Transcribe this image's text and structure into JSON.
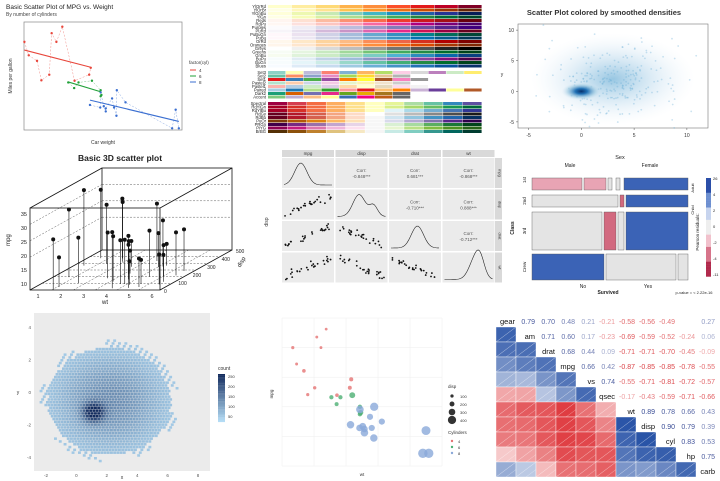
{
  "chart_data": [
    {
      "type": "scatter",
      "title": "Basic Scatter Plot of MPG vs. Weight",
      "subtitle": "By number of cylinders",
      "xlabel": "Car weight",
      "ylabel": "Miles per gallon",
      "legend_title": "factor(cyl)",
      "legend_placement": "right",
      "series": [
        {
          "name": "4",
          "color": "#e8463b",
          "x": [
            2.2,
            2.32,
            2.47,
            1.51,
            1.62,
            1.83,
            1.94,
            2.14,
            3.19,
            3.15,
            2.78
          ],
          "y": [
            32.4,
            30.4,
            33.9,
            30.4,
            27.3,
            26.0,
            21.5,
            22.8,
            24.4,
            22.8,
            21.4
          ]
        },
        {
          "name": "6",
          "color": "#22a13a",
          "x": [
            2.62,
            2.88,
            3.22,
            3.46,
            3.44,
            3.44,
            2.77
          ],
          "y": [
            21.0,
            21.0,
            21.4,
            18.1,
            19.2,
            17.8,
            19.7
          ]
        },
        {
          "name": "8",
          "color": "#3b6fd1",
          "x": [
            3.44,
            3.57,
            4.07,
            3.73,
            3.78,
            5.25,
            5.42,
            5.34,
            3.52,
            3.43,
            3.84,
            3.85,
            3.17,
            3.57
          ],
          "y": [
            18.7,
            14.3,
            16.4,
            17.3,
            15.2,
            10.4,
            10.4,
            14.7,
            15.5,
            15.2,
            13.3,
            19.2,
            15.8,
            15.0
          ]
        }
      ],
      "xlim": [
        1.5,
        5.5
      ],
      "ylim": [
        10,
        35
      ]
    },
    {
      "type": "table",
      "title": "",
      "palettes_group1": [
        "YlOrRd",
        "YlOrBr",
        "YlGnBu",
        "YlGn",
        "Reds",
        "RdPu",
        "Purples",
        "PuRd",
        "PuBuGn",
        "PuBu",
        "OrRd",
        "Oranges",
        "Greys",
        "Greens",
        "GnBu",
        "BuPu",
        "BuGn",
        "Blues"
      ],
      "palettes_group2": [
        "Set3",
        "Set2",
        "Set1",
        "Pastel2",
        "Pastel1",
        "Paired",
        "Dark2",
        "Accent"
      ],
      "palettes_group3": [
        "Spectral",
        "RdYlGn",
        "RdYlBu",
        "RdGy",
        "RdBu",
        "PuOr",
        "PRGn",
        "PiYG",
        "BrBG"
      ]
    },
    {
      "type": "heatmap",
      "title": "Scatter Plot colored by smoothed densities",
      "xlabel": "",
      "ylabel": "y",
      "x_ticks": [
        "-5",
        "0",
        "5",
        "10"
      ],
      "y_ticks": [
        "10",
        "5",
        "0",
        "-5"
      ],
      "xlim": [
        -6,
        12
      ],
      "ylim": [
        -6,
        11
      ]
    },
    {
      "type": "scatter",
      "title": "Basic 3D scatter plot",
      "xlabel": "wt",
      "ylabel": "mpg",
      "zlabel": "disp",
      "x_ticks": [
        "1",
        "2",
        "3",
        "4",
        "5",
        "6"
      ],
      "y_ticks": [
        "10",
        "15",
        "20",
        "25",
        "30",
        "35"
      ],
      "z_ticks": [
        "0",
        "100",
        "200",
        "300",
        "400",
        "500"
      ]
    },
    {
      "type": "scatter",
      "title": "",
      "variables": [
        "mpg",
        "disp",
        "drat",
        "wt"
      ],
      "correlations": [
        {
          "row": "mpg",
          "col": "disp",
          "label": "Corr:",
          "value": "-0.848***"
        },
        {
          "row": "mpg",
          "col": "drat",
          "label": "Corr:",
          "value": "0.681***"
        },
        {
          "row": "mpg",
          "col": "wt",
          "label": "Corr:",
          "value": "-0.868***"
        },
        {
          "row": "disp",
          "col": "drat",
          "label": "Corr:",
          "value": "-0.710***"
        },
        {
          "row": "disp",
          "col": "wt",
          "label": "Corr:",
          "value": "0.888***"
        },
        {
          "row": "drat",
          "col": "wt",
          "label": "Corr:",
          "value": "-0.712***"
        }
      ],
      "ylabel": "disp"
    },
    {
      "type": "table",
      "title": "Sex",
      "col_labels": [
        "Male",
        "Female"
      ],
      "row_labels": [
        "1st",
        "2nd",
        "3rd",
        "Crew"
      ],
      "sub_labels": [
        "Child",
        "Adult"
      ],
      "x_label": "Survived",
      "x_values": [
        "No",
        "Yes"
      ],
      "class_label": "Class",
      "age_label": "Age",
      "legend_title": "Pearson residuals:",
      "legend_ticks": [
        "26",
        "4",
        "2",
        "0",
        "-2",
        "-4",
        "-11"
      ],
      "p_value": "p-value = < 2.22e-16"
    },
    {
      "type": "heatmap",
      "title": "",
      "xlabel": "x",
      "ylabel": "y",
      "legend_title": "count",
      "legend_ticks": [
        "50",
        "100",
        "150",
        "200",
        "250"
      ],
      "x_ticks": [
        "-2",
        "0",
        "2",
        "4",
        "6",
        "8"
      ],
      "y_ticks": [
        "4",
        "2",
        "0",
        "-2",
        "-4"
      ]
    },
    {
      "type": "scatter",
      "title": "",
      "xlabel": "wt",
      "ylabel": "mpg",
      "size_legend_title": "disp",
      "size_legend": [
        "100",
        "200",
        "300",
        "400"
      ],
      "color_legend_title": "Cylinders",
      "color_legend": [
        "4",
        "6",
        "8"
      ],
      "series": [
        {
          "name": "4",
          "color": "#e57373",
          "x": [
            2.2,
            2.32,
            2.47,
            1.51,
            1.62,
            1.83,
            1.94,
            2.14,
            3.19,
            3.15,
            2.78
          ],
          "y": [
            32.4,
            30.4,
            33.9,
            30.4,
            27.3,
            26.0,
            21.5,
            22.8,
            24.4,
            22.8,
            21.4
          ],
          "disp": [
            79,
            75,
            71,
            95,
            79,
            120,
            97,
            108,
            147,
            141,
            121
          ]
        },
        {
          "name": "6",
          "color": "#4caf73",
          "x": [
            2.62,
            2.88,
            3.22,
            3.46,
            3.44,
            3.44,
            2.77
          ],
          "y": [
            21.0,
            21.0,
            21.4,
            18.1,
            19.2,
            17.8,
            19.7
          ],
          "disp": [
            160,
            160,
            258,
            225,
            168,
            168,
            145
          ]
        },
        {
          "name": "8",
          "color": "#8aa9d9",
          "x": [
            3.44,
            3.57,
            4.07,
            3.73,
            3.78,
            5.25,
            5.42,
            5.34,
            3.52,
            3.43,
            3.84,
            3.85,
            3.17,
            3.57
          ],
          "y": [
            18.7,
            14.3,
            16.4,
            17.3,
            15.2,
            10.4,
            10.4,
            14.7,
            15.5,
            15.2,
            13.3,
            19.2,
            15.8,
            15.0
          ],
          "disp": [
            360,
            360,
            276,
            276,
            276,
            472,
            460,
            440,
            318,
            304,
            350,
            400,
            351,
            301
          ]
        }
      ],
      "xlim": [
        1.2,
        5.8
      ],
      "ylim": [
        8,
        36
      ]
    },
    {
      "type": "heatmap",
      "title": "",
      "variables": [
        "gear",
        "am",
        "drat",
        "mpg",
        "vs",
        "qsec",
        "wt",
        "disp",
        "cyl",
        "hp",
        "carb"
      ],
      "upper_values": [
        [
          "0.79",
          "0.70",
          "0.48",
          "0.21",
          "-0.21",
          "-0.58",
          "-0.56",
          "-0.49",
          "",
          "0.27"
        ],
        [
          "0.71",
          "0.60",
          "0.17",
          "-0.23",
          "-0.69",
          "-0.59",
          "-0.52",
          "-0.24",
          "0.06"
        ],
        [
          "0.68",
          "0.44",
          "0.09",
          "-0.71",
          "-0.71",
          "-0.70",
          "-0.45",
          "-0.09"
        ],
        [
          "0.66",
          "0.42",
          "-0.87",
          "-0.85",
          "-0.85",
          "-0.78",
          "-0.55"
        ],
        [
          "0.74",
          "-0.55",
          "-0.71",
          "-0.81",
          "-0.72",
          "-0.57"
        ],
        [
          "-0.17",
          "-0.43",
          "-0.59",
          "-0.71",
          "-0.66"
        ],
        [
          "0.89",
          "0.78",
          "0.66",
          "0.43"
        ],
        [
          "0.90",
          "0.79",
          "0.39"
        ],
        [
          "0.83",
          "0.53"
        ],
        [
          "0.75"
        ],
        []
      ]
    }
  ]
}
